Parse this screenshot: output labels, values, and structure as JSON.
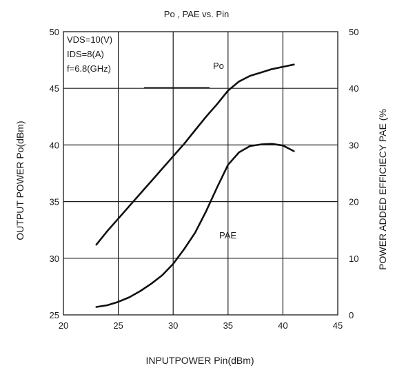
{
  "chart_data": {
    "type": "line",
    "title": "Po , PAE vs. Pin",
    "xlabel": "INPUTPOWER Pin(dBm)",
    "ylabel": "OUTPUT POWER Po(dBm)",
    "y2label": "POWER ADDED EFFICIECY PAE (%",
    "xlim": [
      20,
      45
    ],
    "ylim": [
      25,
      50
    ],
    "y2lim": [
      0,
      50
    ],
    "xticks": [
      "20",
      "25",
      "30",
      "35",
      "40",
      "45"
    ],
    "yticks": [
      "25",
      "30",
      "35",
      "40",
      "45",
      "50"
    ],
    "y2ticks": [
      "0",
      "10",
      "20",
      "30",
      "40",
      "50"
    ],
    "grid": true,
    "conditions": [
      "VDS=10(V)",
      "IDS=8(A)",
      "f=6.8(GHz)"
    ],
    "series": [
      {
        "name": "Po",
        "axis": "left",
        "x": [
          23,
          24,
          25,
          26,
          27,
          28,
          29,
          30,
          31,
          32,
          33,
          34,
          35,
          36,
          37,
          38,
          39,
          40,
          41
        ],
        "y": [
          31.2,
          32.4,
          33.5,
          34.6,
          35.7,
          36.8,
          37.9,
          39.0,
          40.1,
          41.3,
          42.5,
          43.6,
          44.8,
          45.6,
          46.1,
          46.4,
          46.7,
          46.9,
          47.1
        ]
      },
      {
        "name": "PAE",
        "axis": "right",
        "x": [
          23,
          24,
          25,
          26,
          27,
          28,
          29,
          30,
          31,
          32,
          33,
          34,
          35,
          36,
          37,
          38,
          39,
          40,
          41
        ],
        "y": [
          1.4,
          1.7,
          2.3,
          3.1,
          4.2,
          5.5,
          7.0,
          9.0,
          11.6,
          14.5,
          18.3,
          22.5,
          26.5,
          28.7,
          29.8,
          30.1,
          30.2,
          29.9,
          28.9
        ]
      }
    ]
  }
}
